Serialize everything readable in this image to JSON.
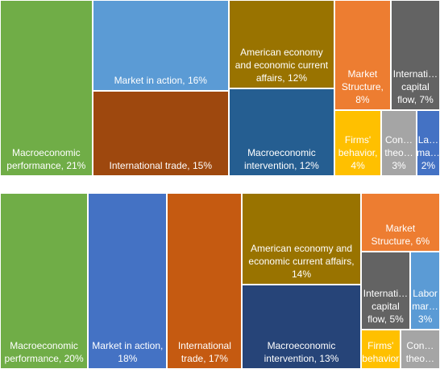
{
  "chart_data": [
    {
      "type": "treemap",
      "categories": [
        "Macroeconomic performance,",
        "Market in action,",
        "International  trade,",
        "American economy and economic current affairs,",
        "Macroeconomic intervention,",
        "Market Structure,",
        "Internati… capital flow,",
        "Firms' behavior,",
        "Con… theo…",
        "La… ma…"
      ],
      "values": [
        21,
        16,
        15,
        12,
        12,
        8,
        7,
        4,
        3,
        2
      ],
      "value_labels": [
        "21%",
        "16%",
        "15%",
        "12%",
        "12%",
        "8%",
        "7%",
        "4%",
        "3%",
        "2%"
      ],
      "colors": [
        "#70ad47",
        "#5b9bd5",
        "#9e480e",
        "#997300",
        "#255e91",
        "#ed7d31",
        "#636363",
        "#ffc000",
        "#a5a5a5",
        "#4472c4"
      ]
    },
    {
      "type": "treemap",
      "categories": [
        "Macroeconomic performance,",
        "Market in action,",
        "International trade,",
        "American economy and economic current affairs,",
        "Macroeconomic intervention,",
        "Market Structure,",
        "Internati… capital flow,",
        "Labor mar…",
        "Firms' behavior",
        "Con… theo…"
      ],
      "values": [
        20,
        18,
        17,
        14,
        13,
        6,
        5,
        3,
        2,
        2
      ],
      "value_labels": [
        "20%",
        "18%",
        "17%",
        "14%",
        "13%",
        "6%",
        "5%",
        "3%",
        null,
        null
      ],
      "colors": [
        "#70ad47",
        "#4472c4",
        "#c55a11",
        "#997300",
        "#264478",
        "#ed7d31",
        "#636363",
        "#5b9bd5",
        "#ffc000",
        "#a5a5a5"
      ]
    }
  ]
}
